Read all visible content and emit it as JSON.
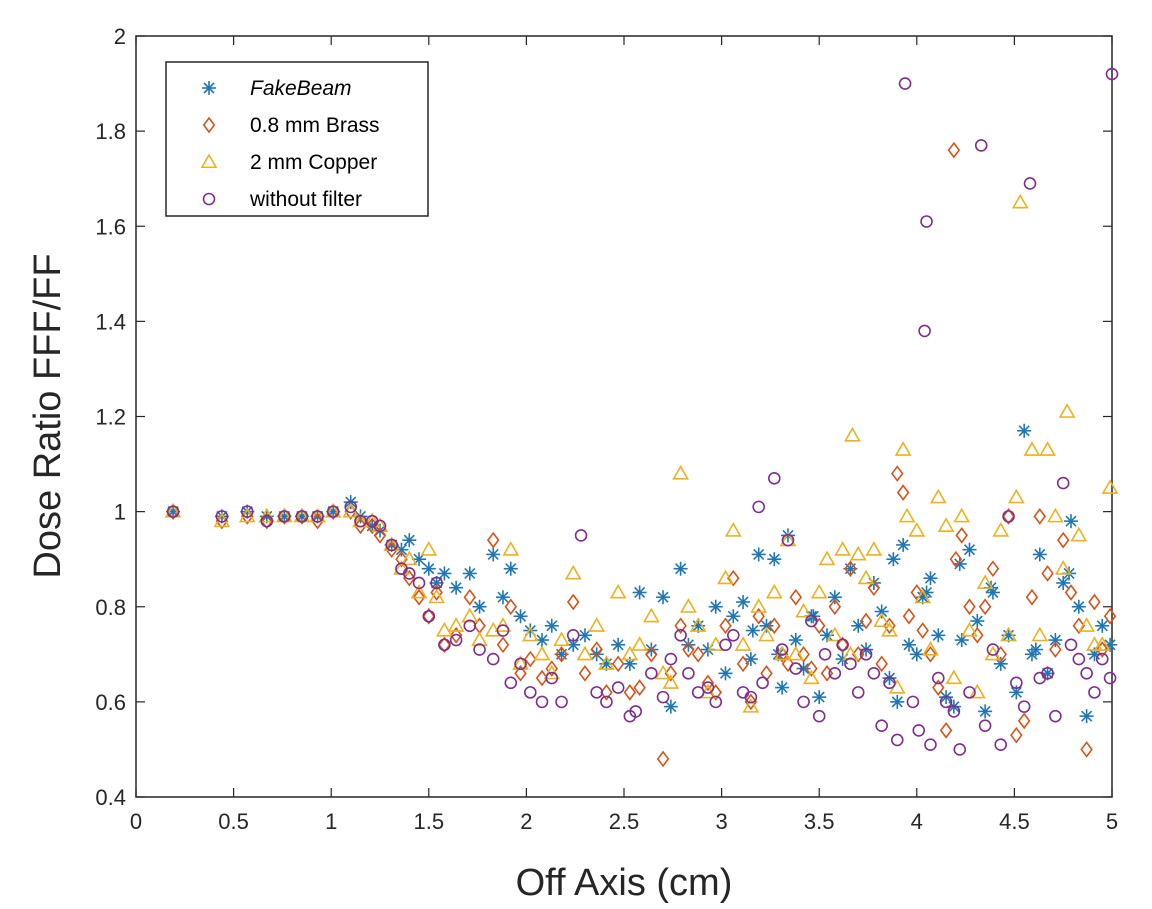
{
  "chart_data": {
    "type": "scatter",
    "title": "",
    "xlabel": "Off Axis (cm)",
    "ylabel": "Dose Ratio FFF/FF",
    "xlim": [
      0,
      5
    ],
    "ylim": [
      0.4,
      2
    ],
    "xticks": [
      "0",
      "0.5",
      "1",
      "1.5",
      "2",
      "2.5",
      "3",
      "3.5",
      "4",
      "4.5",
      "5"
    ],
    "yticks": [
      "0.4",
      "0.6",
      "0.8",
      "1",
      "1.2",
      "1.4",
      "1.6",
      "1.8",
      "2"
    ],
    "grid": false,
    "legend_position": "top-left",
    "series": [
      {
        "name": "FakeBeam",
        "marker": "star",
        "color": "#1f77b4",
        "x": [
          0.19,
          0.44,
          0.57,
          0.67,
          0.76,
          0.85,
          0.93,
          1.01,
          1.1,
          1.15,
          1.21,
          1.25,
          1.31,
          1.36,
          1.4,
          1.45,
          1.5,
          1.54,
          1.58,
          1.64,
          1.71,
          1.76,
          1.83,
          1.88,
          1.92,
          1.97,
          2.02,
          2.08,
          2.13,
          2.18,
          2.24,
          2.3,
          2.36,
          2.41,
          2.47,
          2.53,
          2.58,
          2.64,
          2.7,
          2.74,
          2.79,
          2.83,
          2.88,
          2.93,
          2.97,
          3.02,
          3.06,
          3.11,
          3.15,
          3.19,
          3.23,
          3.27,
          3.31,
          3.34,
          3.38,
          3.42,
          3.46,
          3.5,
          3.54,
          3.58,
          3.62,
          3.66,
          3.7,
          3.74,
          3.78,
          3.82,
          3.86,
          3.9,
          3.93,
          3.96,
          4.0,
          4.03,
          4.07,
          4.11,
          4.15,
          4.19,
          4.23,
          4.27,
          4.31,
          4.35,
          4.39,
          4.43,
          4.47,
          4.51,
          4.55,
          4.59,
          4.63,
          4.67,
          4.71,
          4.75,
          4.79,
          4.83,
          4.87,
          4.91,
          4.95,
          4.99,
          3.16,
          3.29,
          3.47,
          3.88,
          4.05,
          4.22,
          4.38,
          4.61,
          4.78
        ],
        "y": [
          1.0,
          0.99,
          1.0,
          0.99,
          0.99,
          0.99,
          0.99,
          1.0,
          1.02,
          0.99,
          0.97,
          0.96,
          0.93,
          0.92,
          0.94,
          0.9,
          0.88,
          0.85,
          0.87,
          0.84,
          0.87,
          0.8,
          0.91,
          0.82,
          0.88,
          0.78,
          0.75,
          0.73,
          0.76,
          0.7,
          0.72,
          0.74,
          0.7,
          0.68,
          0.72,
          0.68,
          0.83,
          0.71,
          0.82,
          0.59,
          0.88,
          0.72,
          0.76,
          0.71,
          0.8,
          0.66,
          0.78,
          0.81,
          0.69,
          0.91,
          0.76,
          0.9,
          0.63,
          0.95,
          0.73,
          0.67,
          0.78,
          0.61,
          0.74,
          0.82,
          0.69,
          0.88,
          0.76,
          0.71,
          0.85,
          0.79,
          0.65,
          0.6,
          0.93,
          0.72,
          0.7,
          0.82,
          0.86,
          0.74,
          0.61,
          0.59,
          0.73,
          0.92,
          0.77,
          0.58,
          0.83,
          0.68,
          0.74,
          0.62,
          1.17,
          0.7,
          0.91,
          0.66,
          0.73,
          0.85,
          0.98,
          0.8,
          0.57,
          0.7,
          0.76,
          0.72,
          0.75,
          0.7,
          0.78,
          0.9,
          0.83,
          0.89,
          0.84,
          0.71,
          0.87
        ],
        "ys_note": ""
      },
      {
        "name": "0.8 mm Brass",
        "marker": "diamond",
        "color": "#d95319",
        "x": [
          0.19,
          0.44,
          0.57,
          0.67,
          0.76,
          0.85,
          0.93,
          1.01,
          1.1,
          1.15,
          1.21,
          1.25,
          1.31,
          1.36,
          1.4,
          1.45,
          1.5,
          1.54,
          1.58,
          1.64,
          1.71,
          1.76,
          1.83,
          1.88,
          1.92,
          1.97,
          2.02,
          2.08,
          2.13,
          2.18,
          2.24,
          2.3,
          2.36,
          2.41,
          2.47,
          2.53,
          2.58,
          2.64,
          2.7,
          2.74,
          2.79,
          2.83,
          2.88,
          2.93,
          2.97,
          3.02,
          3.06,
          3.11,
          3.15,
          3.19,
          3.23,
          3.27,
          3.31,
          3.34,
          3.38,
          3.42,
          3.46,
          3.5,
          3.54,
          3.58,
          3.62,
          3.66,
          3.7,
          3.74,
          3.78,
          3.82,
          3.86,
          3.9,
          3.93,
          3.96,
          4.0,
          4.03,
          4.07,
          4.11,
          4.15,
          4.19,
          4.2,
          4.23,
          4.27,
          4.31,
          4.35,
          4.39,
          4.43,
          4.47,
          4.51,
          4.55,
          4.59,
          4.63,
          4.67,
          4.71,
          4.75,
          4.79,
          4.83,
          4.87,
          4.91,
          4.95,
          4.99
        ],
        "y": [
          1.0,
          0.98,
          0.99,
          0.98,
          0.99,
          0.99,
          0.98,
          1.0,
          1.0,
          0.97,
          0.97,
          0.95,
          0.92,
          0.9,
          0.86,
          0.82,
          0.78,
          0.83,
          0.72,
          0.74,
          0.82,
          0.76,
          0.94,
          0.72,
          0.8,
          0.66,
          0.69,
          0.65,
          0.67,
          0.7,
          0.81,
          0.66,
          0.71,
          0.62,
          0.68,
          0.62,
          0.63,
          0.7,
          0.48,
          0.66,
          0.76,
          0.71,
          0.7,
          0.64,
          0.62,
          0.76,
          0.86,
          0.68,
          0.6,
          0.78,
          0.66,
          0.76,
          0.7,
          0.68,
          0.82,
          0.7,
          0.67,
          0.76,
          0.66,
          0.8,
          0.72,
          0.88,
          0.7,
          0.77,
          0.84,
          0.68,
          0.76,
          1.08,
          1.04,
          0.78,
          0.83,
          0.75,
          0.7,
          0.63,
          0.54,
          1.76,
          0.9,
          0.95,
          0.8,
          0.74,
          0.8,
          0.88,
          0.7,
          0.99,
          0.53,
          0.56,
          0.82,
          0.99,
          0.87,
          0.71,
          0.94,
          0.83,
          0.76,
          0.5,
          0.81,
          0.71,
          0.78
        ],
        "ys_note": ""
      },
      {
        "name": "2 mm Copper",
        "marker": "triangle",
        "color": "#edb120",
        "x": [
          0.19,
          0.44,
          0.57,
          0.67,
          0.76,
          0.85,
          0.93,
          1.01,
          1.1,
          1.15,
          1.21,
          1.25,
          1.31,
          1.36,
          1.4,
          1.45,
          1.5,
          1.54,
          1.58,
          1.64,
          1.71,
          1.76,
          1.83,
          1.88,
          1.92,
          1.97,
          2.02,
          2.08,
          2.13,
          2.18,
          2.24,
          2.3,
          2.36,
          2.41,
          2.47,
          2.53,
          2.58,
          2.64,
          2.7,
          2.74,
          2.79,
          2.83,
          2.88,
          2.93,
          2.97,
          3.02,
          3.06,
          3.11,
          3.15,
          3.19,
          3.23,
          3.27,
          3.31,
          3.34,
          3.38,
          3.42,
          3.46,
          3.5,
          3.54,
          3.58,
          3.62,
          3.66,
          3.67,
          3.7,
          3.74,
          3.78,
          3.82,
          3.86,
          3.9,
          3.93,
          3.95,
          4.0,
          4.03,
          4.07,
          4.11,
          4.15,
          4.19,
          4.23,
          4.27,
          4.31,
          4.35,
          4.39,
          4.43,
          4.47,
          4.51,
          4.53,
          4.59,
          4.63,
          4.67,
          4.71,
          4.75,
          4.77,
          4.83,
          4.87,
          4.91,
          4.95,
          4.99
        ],
        "y": [
          1.0,
          0.98,
          0.99,
          0.99,
          0.99,
          0.99,
          0.99,
          1.0,
          1.0,
          0.98,
          0.98,
          0.97,
          0.93,
          0.88,
          0.9,
          0.83,
          0.92,
          0.82,
          0.75,
          0.76,
          0.78,
          0.73,
          0.75,
          0.76,
          0.92,
          0.68,
          0.74,
          0.7,
          0.66,
          0.73,
          0.87,
          0.7,
          0.76,
          0.68,
          0.83,
          0.7,
          0.72,
          0.78,
          0.66,
          0.64,
          1.08,
          0.8,
          0.76,
          0.62,
          0.72,
          0.86,
          0.96,
          0.72,
          0.59,
          0.8,
          0.74,
          0.83,
          0.7,
          0.94,
          0.7,
          0.79,
          0.65,
          0.83,
          0.9,
          0.74,
          0.92,
          0.7,
          1.16,
          0.91,
          0.86,
          0.92,
          0.77,
          0.75,
          0.63,
          1.13,
          0.99,
          0.96,
          0.82,
          0.71,
          1.03,
          0.97,
          0.65,
          0.99,
          0.75,
          0.62,
          0.85,
          0.7,
          0.96,
          0.74,
          1.03,
          1.65,
          1.13,
          0.74,
          1.13,
          0.99,
          0.88,
          1.21,
          0.95,
          0.76,
          0.72,
          0.72,
          1.05
        ],
        "ys_note": ""
      },
      {
        "name": "without filter",
        "marker": "circle",
        "color": "#7e2f8e",
        "x": [
          0.19,
          0.44,
          0.57,
          0.67,
          0.76,
          0.85,
          0.93,
          1.01,
          1.1,
          1.15,
          1.21,
          1.25,
          1.31,
          1.36,
          1.4,
          1.45,
          1.5,
          1.54,
          1.58,
          1.64,
          1.71,
          1.76,
          1.83,
          1.88,
          1.92,
          1.97,
          2.02,
          2.08,
          2.13,
          2.18,
          2.24,
          2.28,
          2.36,
          2.41,
          2.47,
          2.53,
          2.56,
          2.64,
          2.7,
          2.74,
          2.79,
          2.83,
          2.88,
          2.93,
          2.97,
          3.02,
          3.06,
          3.11,
          3.15,
          3.19,
          3.21,
          3.27,
          3.31,
          3.34,
          3.38,
          3.42,
          3.46,
          3.5,
          3.53,
          3.58,
          3.62,
          3.66,
          3.7,
          3.74,
          3.78,
          3.82,
          3.86,
          3.9,
          3.94,
          3.98,
          4.01,
          4.04,
          4.05,
          4.07,
          4.11,
          4.15,
          4.19,
          4.22,
          4.27,
          4.33,
          4.35,
          4.39,
          4.43,
          4.47,
          4.51,
          4.55,
          4.58,
          4.63,
          4.67,
          4.71,
          4.75,
          4.79,
          4.83,
          4.87,
          4.91,
          4.95,
          4.99,
          5.0
        ],
        "y": [
          1.0,
          0.99,
          1.0,
          0.98,
          0.99,
          0.99,
          0.99,
          1.0,
          1.01,
          0.98,
          0.98,
          0.97,
          0.93,
          0.88,
          0.87,
          0.85,
          0.78,
          0.85,
          0.72,
          0.73,
          0.76,
          0.71,
          0.69,
          0.75,
          0.64,
          0.68,
          0.62,
          0.6,
          0.65,
          0.6,
          0.74,
          0.95,
          0.62,
          0.6,
          0.63,
          0.57,
          0.58,
          0.66,
          0.61,
          0.69,
          0.74,
          0.66,
          0.62,
          0.63,
          0.6,
          0.72,
          0.74,
          0.62,
          0.61,
          1.01,
          0.64,
          1.07,
          0.71,
          0.94,
          0.67,
          0.6,
          0.77,
          0.57,
          0.7,
          0.66,
          0.72,
          0.68,
          0.62,
          0.7,
          0.66,
          0.55,
          0.64,
          0.52,
          1.9,
          0.6,
          0.54,
          1.38,
          1.61,
          0.51,
          0.65,
          0.6,
          0.58,
          0.5,
          0.62,
          1.77,
          0.55,
          0.71,
          0.51,
          0.99,
          0.64,
          0.59,
          1.69,
          0.65,
          0.66,
          0.57,
          1.06,
          0.72,
          0.69,
          0.66,
          0.62,
          0.69,
          0.65,
          1.92
        ],
        "ys_note": ""
      }
    ]
  }
}
